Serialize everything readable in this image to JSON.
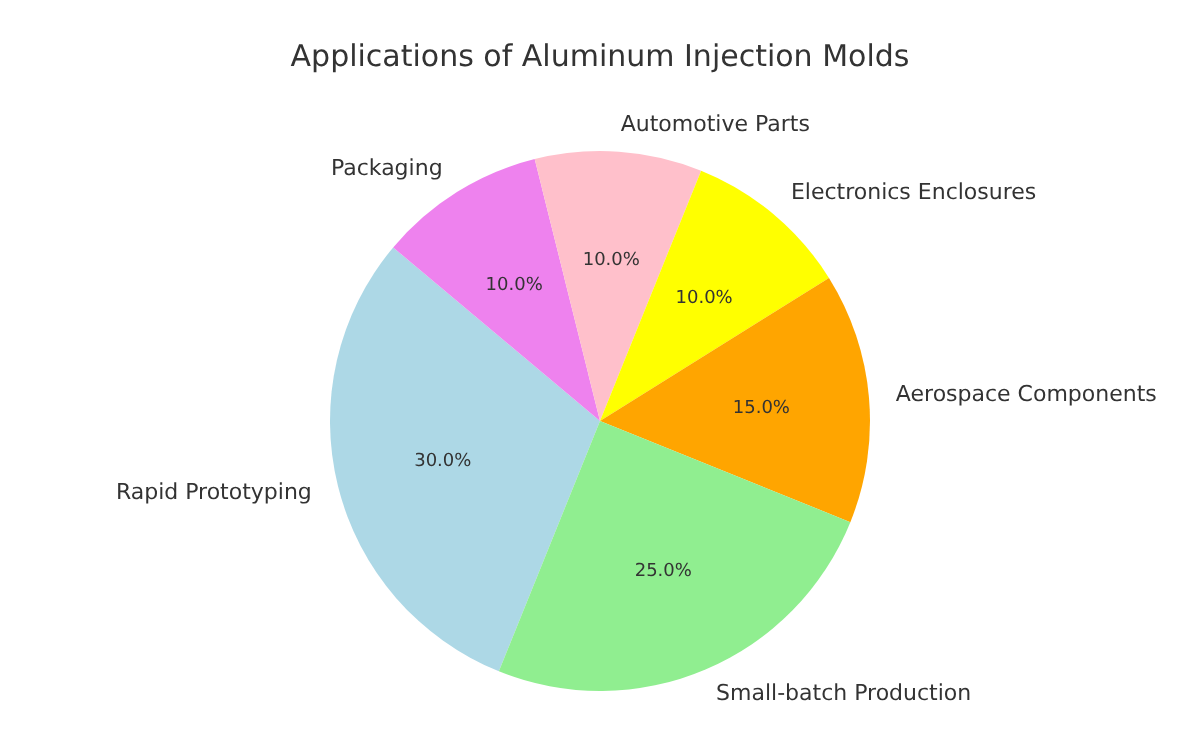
{
  "chart_data": {
    "type": "pie",
    "title": "Applications of Aluminum Injection Molds",
    "categories": [
      "Rapid Prototyping",
      "Packaging",
      "Automotive Parts",
      "Electronics Enclosures",
      "Aerospace Components",
      "Small-batch Production"
    ],
    "values": [
      30,
      10,
      10,
      10,
      15,
      25
    ],
    "colors": [
      "#add8e6",
      "#ee82ee",
      "#ffc0cb",
      "#ffff00",
      "#ffa500",
      "#90ee90"
    ],
    "value_labels": [
      "30.0%",
      "10.0%",
      "10.0%",
      "10.0%",
      "15.0%",
      "25.0%"
    ]
  }
}
